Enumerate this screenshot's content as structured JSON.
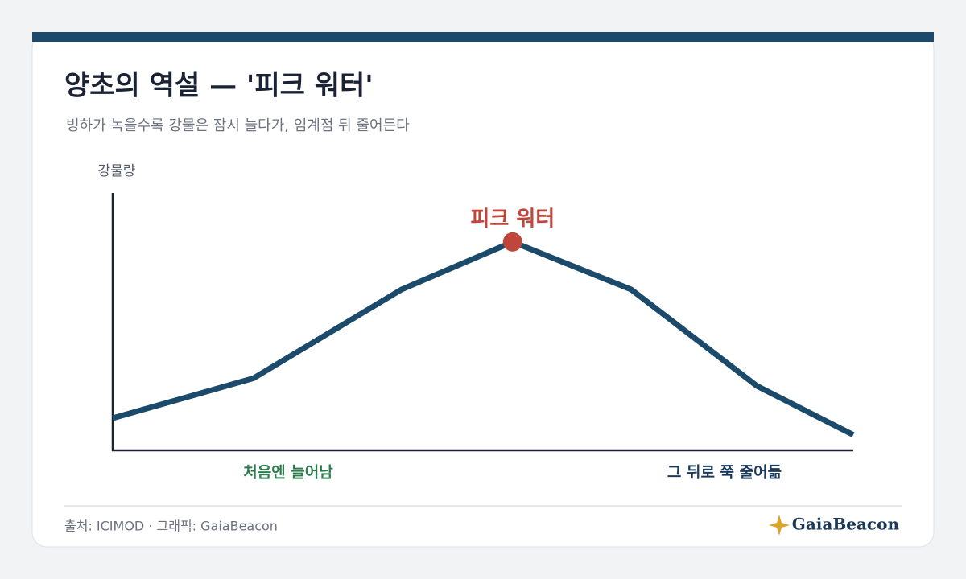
{
  "chart_data": {
    "type": "line",
    "title": "양초의 역설 — '피크 워터'",
    "subtitle": "빙하가 녹을수록 강물은 잠시 늘다가, 임계점 뒤 줄어든다",
    "y_label": "강물량",
    "x": [
      0,
      19,
      39,
      54,
      70,
      87,
      100
    ],
    "xlim": [
      0,
      100
    ],
    "ylim": [
      0,
      100
    ],
    "series": [
      {
        "name": "강물량",
        "color": "#1b4a6b",
        "values": [
          12.5,
          28,
          62.5,
          81,
          62.5,
          25,
          6
        ]
      }
    ],
    "annotation": {
      "text": "피크 워터",
      "point": 3,
      "color": "#c0453a"
    },
    "region_labels": [
      {
        "text": "처음엔 늘어남",
        "color": "#2e7d4f"
      },
      {
        "text": "그 뒤로 쭉 줄어듦",
        "color": "#1b3a5b"
      }
    ],
    "source": "출처: ICIMOD · 그래픽: GaiaBeacon",
    "logo": "GaiaBeacon"
  }
}
